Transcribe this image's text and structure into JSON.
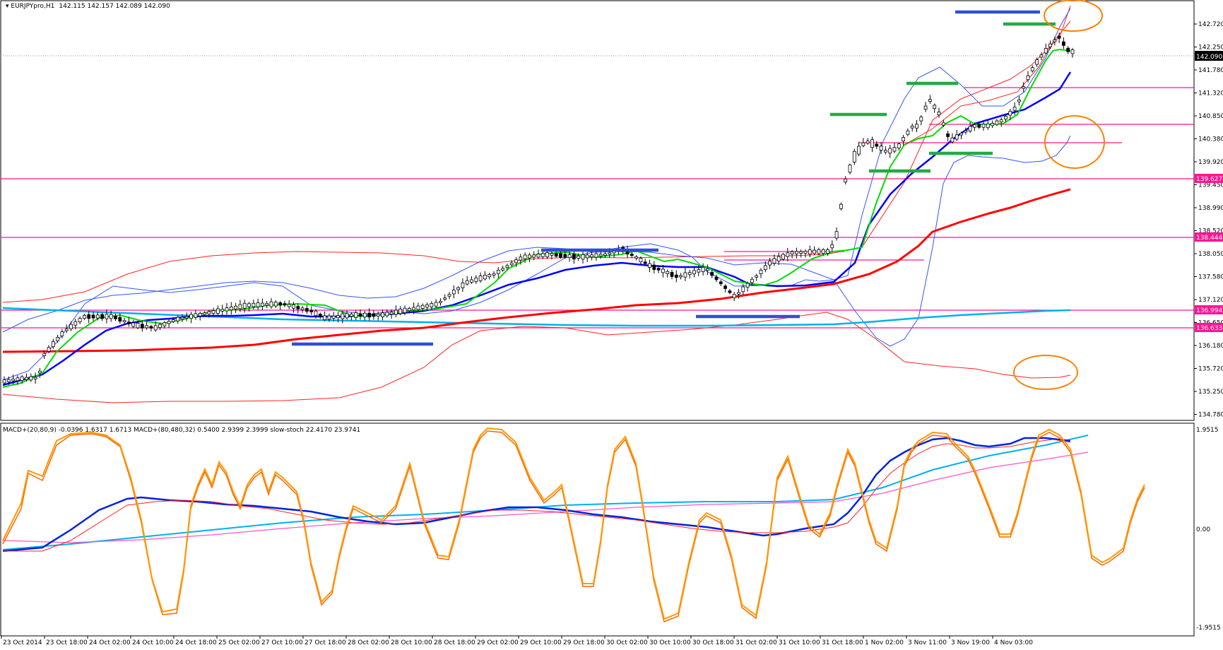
{
  "header": {
    "symbol": "EURJPYpro,H1",
    "ohlc": "142.115 142.157 142.089 142.090"
  },
  "indicator_header": "MACD+(20,80,9) -0.0396 1.6317 1.6713  MACD+(80,480,32) 0.5400 2.9399 2.3999  slow-stoch 22.4170 23.9741",
  "price_axis": {
    "labels": [
      "142.720",
      "142.250",
      "141.780",
      "141.320",
      "140.850",
      "140.380",
      "139.920",
      "139.450",
      "138.990",
      "138.520",
      "138.050",
      "137.580",
      "137.120",
      "136.650",
      "136.180",
      "135.720",
      "135.250",
      "134.780"
    ],
    "current_price": "142.090",
    "level_tags": [
      "139.627",
      "138.444",
      "136.994",
      "136.633"
    ]
  },
  "indicator_axis": {
    "labels": [
      "1.9515",
      "0.00",
      "-1.9515"
    ]
  },
  "time_axis": {
    "labels": [
      "23 Oct 2014",
      "23 Oct 18:00",
      "24 Oct 02:00",
      "24 Oct 10:00",
      "24 Oct 18:00",
      "25 Oct 02:00",
      "27 Oct 10:00",
      "27 Oct 18:00",
      "28 Oct 02:00",
      "28 Oct 10:00",
      "28 Oct 18:00",
      "29 Oct 02:00",
      "29 Oct 10:00",
      "29 Oct 18:00",
      "30 Oct 02:00",
      "30 Oct 10:00",
      "30 Oct 18:00",
      "31 Oct 02:00",
      "31 Oct 10:00",
      "31 Oct 18:00",
      "1 Nov 02:00",
      "3 Nov 11:00",
      "3 Nov 19:00",
      "4 Nov 03:00"
    ]
  },
  "colors": {
    "background": "#ffffff",
    "axis": "#000000",
    "bull_candle": "#ffffff",
    "bear_candle": "#000000",
    "ema_fast": "#00dd00",
    "ema_mid": "#0000ff",
    "ema_slow": "#ff0000",
    "ema_long": "#00b0f0",
    "bollinger": "#3355ff",
    "envelope": "#ff2222",
    "level_line": "#ff1493",
    "resistance_bar": "#3050d0",
    "target_bar": "#22aa44",
    "annotation": "#ff8000",
    "stoch": "#ff9900"
  },
  "chart_data": {
    "type": "candlestick",
    "title": "EURJPYpro,H1",
    "ylim": [
      134.78,
      143.2
    ],
    "horizontal_levels": [
      139.627,
      138.444,
      136.994,
      136.633,
      141.32,
      140.65,
      140.26,
      137.52
    ],
    "last_price": 142.09,
    "indicators": [
      "MACD+(20,80,9)",
      "MACD+(80,480,32)",
      "slow-stoch"
    ]
  }
}
